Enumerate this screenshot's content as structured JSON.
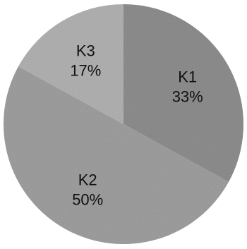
{
  "chart_data": {
    "type": "pie",
    "title": "",
    "slices": [
      {
        "label": "K1",
        "value": 33,
        "value_label": "33%",
        "color": "#8f8f8f"
      },
      {
        "label": "K2",
        "value": 50,
        "value_label": "50%",
        "color": "#a0a0a0"
      },
      {
        "label": "K3",
        "value": 17,
        "value_label": "17%",
        "color": "#b3b3b3"
      }
    ],
    "start_angle_deg": 0,
    "direction": "clockwise",
    "legend": "none"
  }
}
